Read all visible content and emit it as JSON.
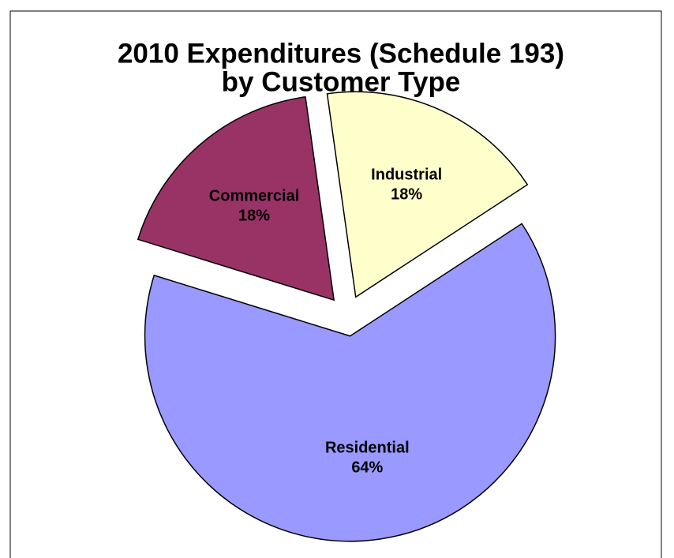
{
  "chart_data": {
    "type": "pie",
    "title": [
      "2010 Expenditures (Schedule 193)",
      "by Customer Type"
    ],
    "categories": [
      "Industrial",
      "Residential",
      "Commercial"
    ],
    "values": [
      18,
      64,
      18
    ],
    "value_labels": [
      "18%",
      "64%",
      "18%"
    ],
    "colors": [
      "#ffffcc",
      "#9999ff",
      "#993366"
    ]
  }
}
